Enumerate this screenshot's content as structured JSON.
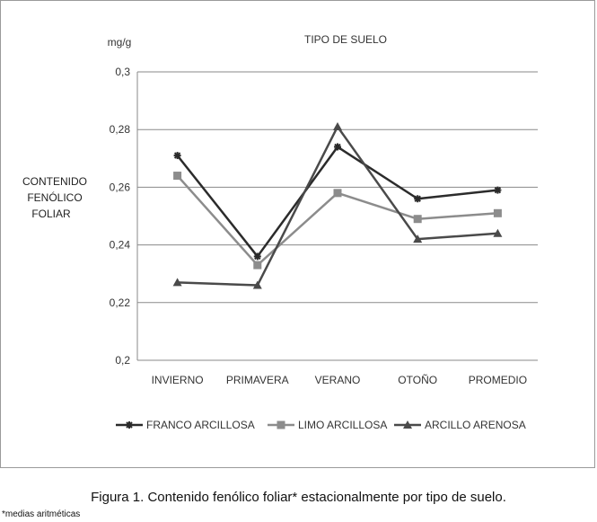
{
  "chart_data": {
    "type": "line",
    "title": "TIPO DE SUELO",
    "unit_label": "mg/g",
    "ylabel": [
      "CONTENIDO",
      "FENÓLICO",
      "FOLIAR"
    ],
    "xlabel": "",
    "categories": [
      "INVIERNO",
      "PRIMAVERA",
      "VERANO",
      "OTOÑO",
      "PROMEDIO"
    ],
    "ylim": [
      0.2,
      0.3
    ],
    "yticks": [
      "0,2",
      "0,22",
      "0,24",
      "0,26",
      "0,28",
      "0,3"
    ],
    "ytick_values": [
      0.2,
      0.22,
      0.24,
      0.26,
      0.28,
      0.3
    ],
    "grid": true,
    "legend_position": "bottom",
    "series": [
      {
        "name": "FRANCO ARCILLOSA",
        "values": [
          0.271,
          0.236,
          0.274,
          0.256,
          0.259
        ],
        "color": "#2b2b2b",
        "marker": "star"
      },
      {
        "name": "LIMO ARCILLOSA",
        "values": [
          0.264,
          0.233,
          0.258,
          0.249,
          0.251
        ],
        "color": "#8c8c8c",
        "marker": "square"
      },
      {
        "name": "ARCILLO ARENOSA",
        "values": [
          0.227,
          0.226,
          0.281,
          0.242,
          0.244
        ],
        "color": "#4a4a4a",
        "marker": "triangle"
      }
    ]
  },
  "caption": "Figura 1. Contenido fenólico foliar* estacionalmente por tipo de suelo.",
  "footnote": "*medias aritméticas"
}
